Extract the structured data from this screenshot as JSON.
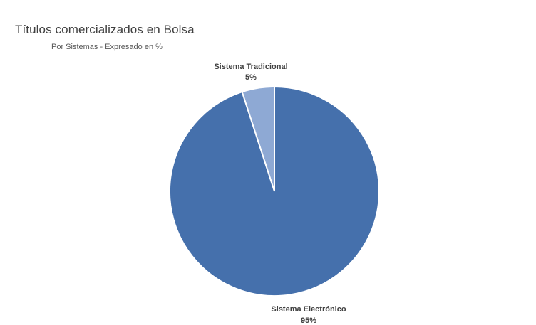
{
  "chart_data": {
    "type": "pie",
    "title": "Títulos comercializados en Bolsa",
    "subtitle": "Por Sistemas - Expresado en %",
    "categories": [
      "Sistema Tradicional",
      "Sistema Electrónico"
    ],
    "values": [
      5,
      95
    ],
    "labels": [
      "5%",
      "95%"
    ],
    "colors": [
      "#8EA9D4",
      "#4570AC"
    ],
    "legend": "none"
  }
}
